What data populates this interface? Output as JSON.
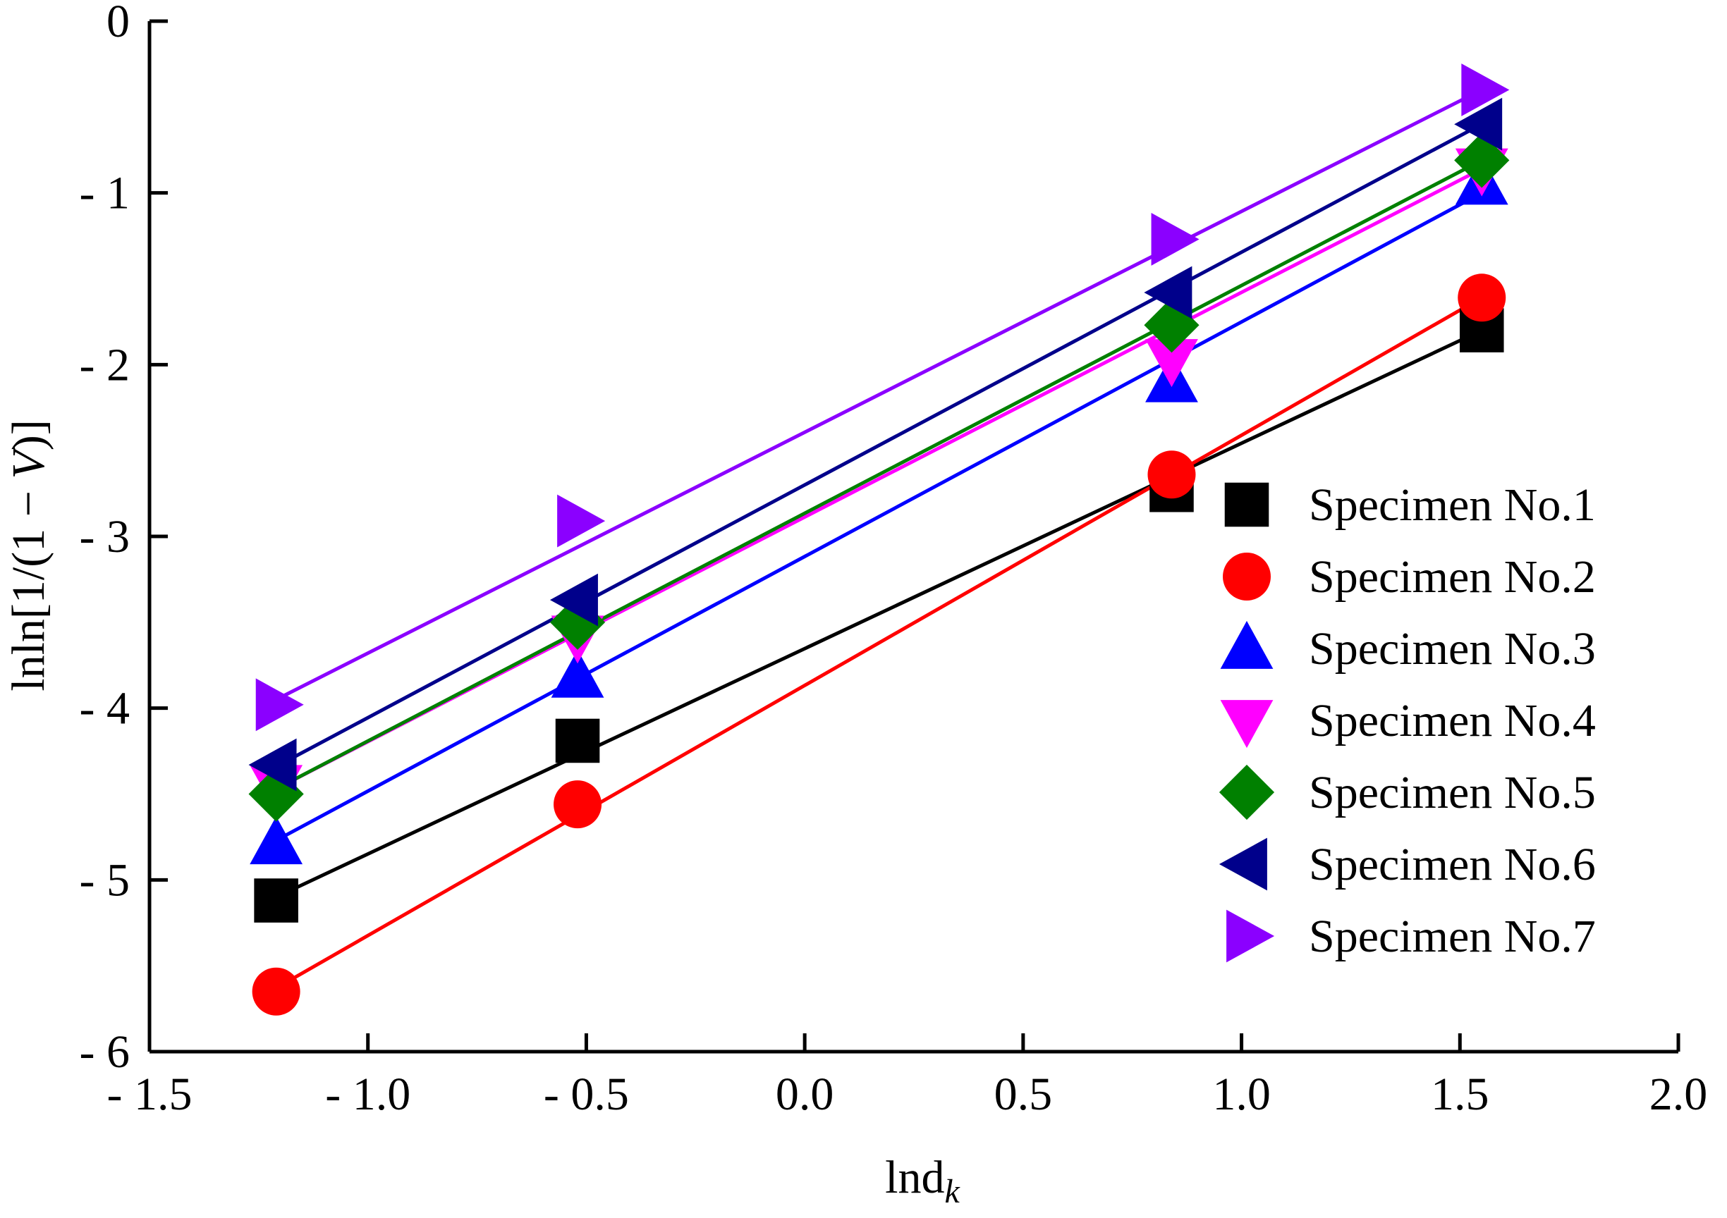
{
  "chart_data": {
    "type": "scatter",
    "title": "",
    "xlabel": {
      "main": "lnd",
      "sub": "k",
      "full": "lnd_k"
    },
    "ylabel": {
      "prefix": "lnln[1/(1 − ",
      "var": "V",
      "suffix": ")]",
      "full": "lnln[1/(1 − V)]"
    },
    "xlim": [
      -1.5,
      2.0
    ],
    "ylim": [
      -6,
      0
    ],
    "x_ticks": [
      -1.5,
      -1.0,
      -0.5,
      0.0,
      0.5,
      1.0,
      1.5,
      2.0
    ],
    "x_tick_labels": [
      "- 1.5",
      "- 1.0",
      "- 0.5",
      "0.0",
      "0.5",
      "1.0",
      "1.5",
      "2.0"
    ],
    "y_ticks": [
      0,
      -1,
      -2,
      -3,
      -4,
      -5,
      -6
    ],
    "y_tick_labels": [
      "0",
      "- 1",
      "- 2",
      "- 3",
      "- 4",
      "- 5",
      "- 6"
    ],
    "grid": false,
    "legend_position": "right",
    "x": [
      -1.21,
      -0.52,
      0.84,
      1.55
    ],
    "series": [
      {
        "name": "Specimen No.1",
        "marker": "square",
        "color": "#000000",
        "values": [
          -5.12,
          -4.19,
          -2.73,
          -1.8
        ],
        "fit": [
          -5.1,
          -1.8
        ]
      },
      {
        "name": "Specimen No.2",
        "marker": "circle",
        "color": "#ff0000",
        "values": [
          -5.65,
          -4.56,
          -2.64,
          -1.61
        ],
        "fit": [
          -5.63,
          -1.61
        ]
      },
      {
        "name": "Specimen No.3",
        "marker": "triangle-up",
        "color": "#0000ff",
        "values": [
          -4.79,
          -3.82,
          -2.1,
          -0.95
        ],
        "fit": [
          -4.77,
          -1.0
        ]
      },
      {
        "name": "Specimen No.4",
        "marker": "triangle-down",
        "color": "#ff00ff",
        "values": [
          -4.45,
          -3.58,
          -1.97,
          -0.86
        ],
        "fit": [
          -4.47,
          -0.86
        ]
      },
      {
        "name": "Specimen No.5",
        "marker": "diamond",
        "color": "#008000",
        "values": [
          -4.5,
          -3.5,
          -1.77,
          -0.81
        ],
        "fit": [
          -4.47,
          -0.81
        ]
      },
      {
        "name": "Specimen No.6",
        "marker": "triangle-left",
        "color": "#00008b",
        "values": [
          -4.33,
          -3.37,
          -1.58,
          -0.6
        ],
        "fit": [
          -4.34,
          -0.6
        ]
      },
      {
        "name": "Specimen No.7",
        "marker": "triangle-right",
        "color": "#8b00ff",
        "values": [
          -3.98,
          -2.91,
          -1.27,
          -0.4
        ],
        "fit": [
          -3.95,
          -0.4
        ]
      }
    ]
  }
}
